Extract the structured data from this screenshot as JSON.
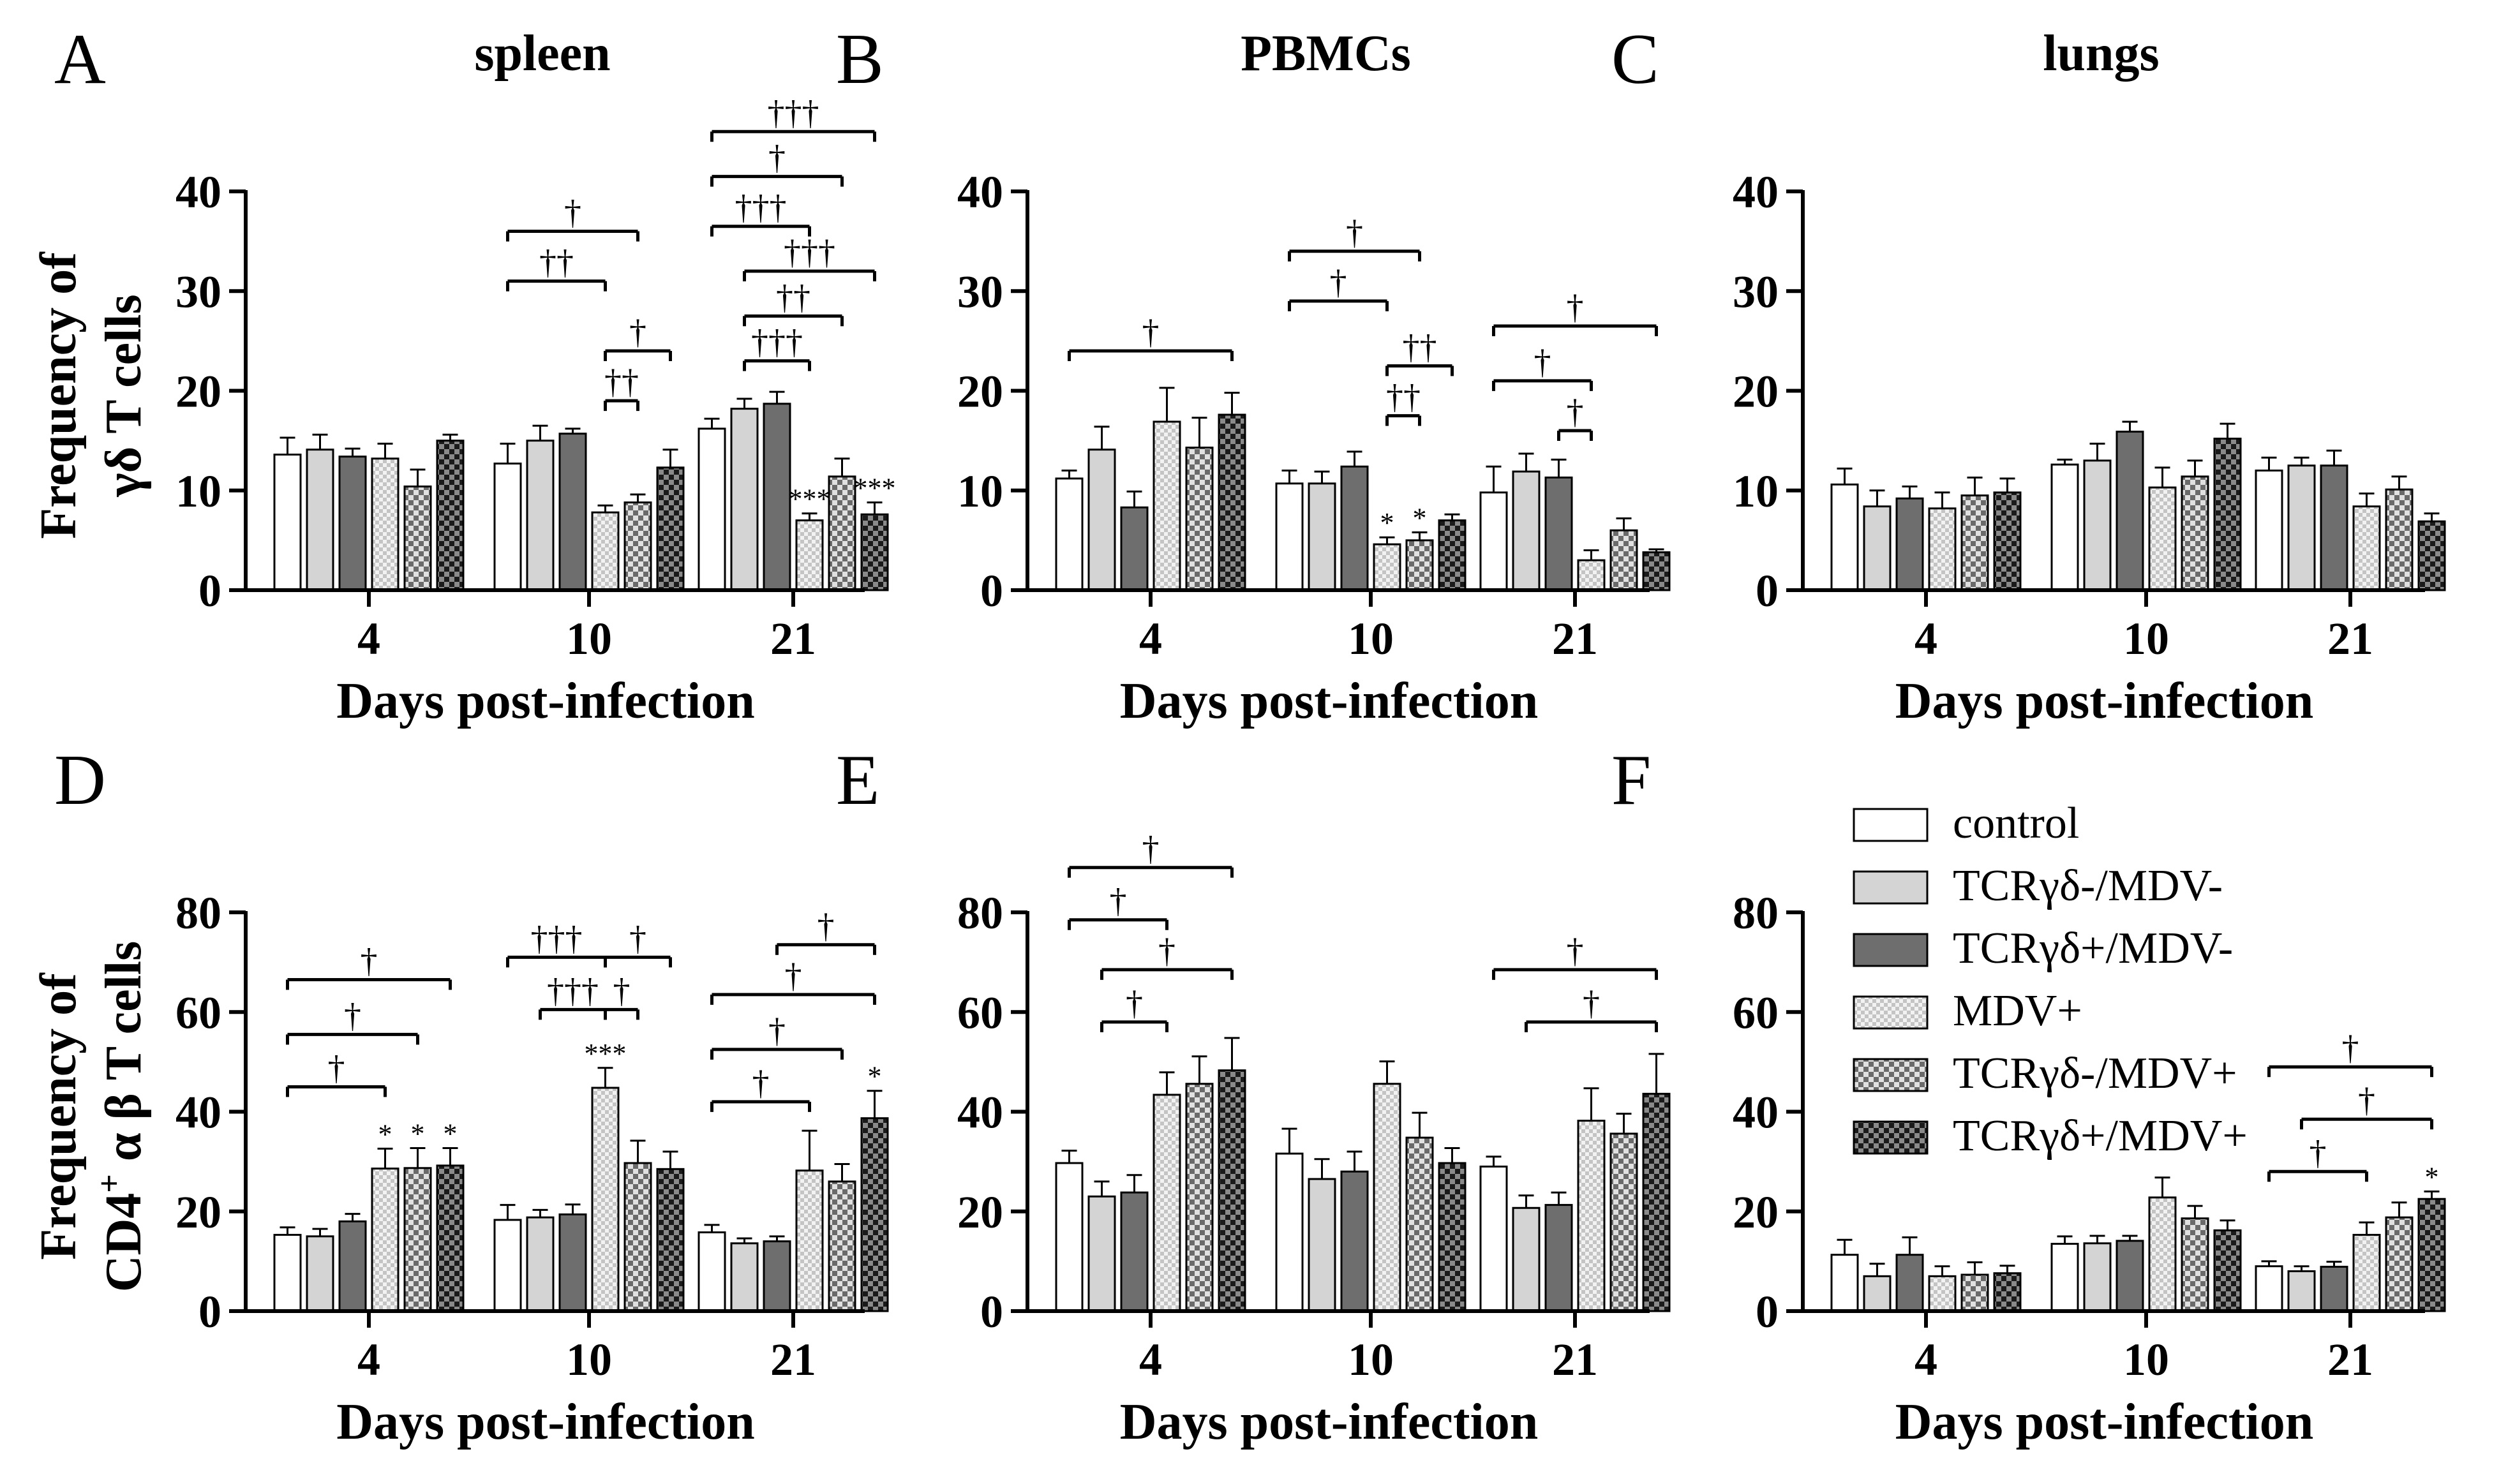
{
  "chart_data": {
    "type": "bar",
    "legend": {
      "placement": "right of panel F",
      "entries": [
        "control",
        "TCRγδ-/MDV-",
        "TCRγδ+/MDV-",
        "MDV+",
        "TCRγδ-/MDV+",
        "TCRγδ+/MDV+"
      ]
    },
    "series_fills": [
      "#ffffff",
      "#d4d4d4",
      "#6e6e6e",
      "dots-light",
      "checker-medium",
      "checker-dark"
    ],
    "ylabels": [
      "Frequency of",
      "γδ T cells",
      "CD4",
      "+",
      " α β T cells"
    ],
    "panels": [
      {
        "letter": "A",
        "title": "spleen",
        "xlabel": "Days post-infection",
        "categories": [
          "4",
          "10",
          "21"
        ],
        "ylim": [
          0,
          40
        ],
        "yticks": [
          0,
          10,
          20,
          30,
          40
        ],
        "series": [
          {
            "name": "control",
            "values": [
              13.6,
              12.7,
              16.2
            ],
            "errors": [
              1.7,
              2.0,
              1.0
            ]
          },
          {
            "name": "TCRγδ-/MDV-",
            "values": [
              14.1,
              15.0,
              18.2
            ],
            "errors": [
              1.5,
              1.5,
              1.0
            ]
          },
          {
            "name": "TCRγδ+/MDV-",
            "values": [
              13.4,
              15.7,
              18.7
            ],
            "errors": [
              0.8,
              0.5,
              1.2
            ]
          },
          {
            "name": "MDV+",
            "values": [
              13.2,
              7.8,
              7.0
            ],
            "errors": [
              1.5,
              0.7,
              0.7
            ]
          },
          {
            "name": "TCRγδ-/MDV+",
            "values": [
              10.4,
              8.8,
              11.4
            ],
            "errors": [
              1.7,
              0.8,
              1.8
            ]
          },
          {
            "name": "TCRγδ+/MDV+",
            "values": [
              15.0,
              12.3,
              7.6
            ],
            "errors": [
              0.6,
              1.8,
              1.2
            ]
          }
        ],
        "stars": [
          {
            "group": 2,
            "bar": 3,
            "text": "***"
          },
          {
            "group": 2,
            "bar": 5,
            "text": "***"
          }
        ],
        "brackets": [
          {
            "group": 1,
            "from": 0,
            "to": 4,
            "y": 36,
            "text": "†"
          },
          {
            "group": 1,
            "from": 0,
            "to": 3,
            "y": 31,
            "text": "††"
          },
          {
            "group": 1,
            "from": 3,
            "to": 5,
            "y": 24,
            "text": "†"
          },
          {
            "group": 1,
            "from": 3,
            "to": 4,
            "y": 19,
            "text": "††"
          },
          {
            "group": 2,
            "from": 0,
            "to": 5,
            "y": 46,
            "text": "†††"
          },
          {
            "group": 2,
            "from": 0,
            "to": 4,
            "y": 41.5,
            "text": "†"
          },
          {
            "group": 2,
            "from": 0,
            "to": 3,
            "y": 36.5,
            "text": "†††"
          },
          {
            "group": 2,
            "from": 1,
            "to": 5,
            "y": 32,
            "text": "†††"
          },
          {
            "group": 2,
            "from": 1,
            "to": 4,
            "y": 27.5,
            "text": "††"
          },
          {
            "group": 2,
            "from": 1,
            "to": 3,
            "y": 23,
            "text": "†††"
          }
        ]
      },
      {
        "letter": "B",
        "title": "PBMCs",
        "xlabel": "Days post-infection",
        "categories": [
          "4",
          "10",
          "21"
        ],
        "ylim": [
          0,
          40
        ],
        "yticks": [
          0,
          10,
          20,
          30,
          40
        ],
        "series": [
          {
            "name": "control",
            "values": [
              11.2,
              10.7,
              9.8
            ],
            "errors": [
              0.8,
              1.3,
              2.6
            ]
          },
          {
            "name": "TCRγδ-/MDV-",
            "values": [
              14.1,
              10.7,
              11.9
            ],
            "errors": [
              2.3,
              1.2,
              1.8
            ]
          },
          {
            "name": "TCRγδ+/MDV-",
            "values": [
              8.3,
              12.4,
              11.3
            ],
            "errors": [
              1.6,
              1.5,
              1.8
            ]
          },
          {
            "name": "MDV+",
            "values": [
              16.9,
              4.6,
              3.0
            ],
            "errors": [
              3.4,
              0.7,
              1.0
            ]
          },
          {
            "name": "TCRγδ-/MDV+",
            "values": [
              14.3,
              5.0,
              6.0
            ],
            "errors": [
              3.0,
              0.8,
              1.2
            ]
          },
          {
            "name": "TCRγδ+/MDV+",
            "values": [
              17.6,
              7.0,
              3.8
            ],
            "errors": [
              2.2,
              0.6,
              0.3
            ]
          }
        ],
        "stars": [
          {
            "group": 1,
            "bar": 3,
            "text": "*"
          },
          {
            "group": 1,
            "bar": 4,
            "text": "*"
          }
        ],
        "brackets": [
          {
            "group": 0,
            "from": 0,
            "to": 5,
            "y": 24,
            "text": "†"
          },
          {
            "group": 1,
            "from": 0,
            "to": 4,
            "y": 34,
            "text": "†"
          },
          {
            "group": 1,
            "from": 0,
            "to": 3,
            "y": 29,
            "text": "†"
          },
          {
            "group": 1,
            "from": 3,
            "to": 5,
            "y": 22.5,
            "text": "††"
          },
          {
            "group": 1,
            "from": 3,
            "to": 4,
            "y": 17.5,
            "text": "††"
          },
          {
            "group": 2,
            "from": 0,
            "to": 5,
            "y": 26.5,
            "text": "†"
          },
          {
            "group": 2,
            "from": 0,
            "to": 3,
            "y": 21,
            "text": "†"
          },
          {
            "group": 2,
            "from": 2,
            "to": 3,
            "y": 16,
            "text": "†"
          }
        ]
      },
      {
        "letter": "C",
        "title": "lungs",
        "xlabel": "Days post-infection",
        "categories": [
          "4",
          "10",
          "21"
        ],
        "ylim": [
          0,
          40
        ],
        "yticks": [
          0,
          10,
          20,
          30,
          40
        ],
        "series": [
          {
            "name": "control",
            "values": [
              10.6,
              12.6,
              12.0
            ],
            "errors": [
              1.6,
              0.5,
              1.3
            ]
          },
          {
            "name": "TCRγδ-/MDV-",
            "values": [
              8.4,
              13.0,
              12.5
            ],
            "errors": [
              1.6,
              1.7,
              0.8
            ]
          },
          {
            "name": "TCRγδ+/MDV-",
            "values": [
              9.2,
              15.9,
              12.5
            ],
            "errors": [
              1.2,
              1.0,
              1.5
            ]
          },
          {
            "name": "MDV+",
            "values": [
              8.2,
              10.3,
              8.4
            ],
            "errors": [
              1.6,
              2.0,
              1.3
            ]
          },
          {
            "name": "TCRγδ-/MDV+",
            "values": [
              9.5,
              11.4,
              10.1
            ],
            "errors": [
              1.8,
              1.6,
              1.3
            ]
          },
          {
            "name": "TCRγδ+/MDV+",
            "values": [
              9.8,
              15.2,
              6.9
            ],
            "errors": [
              1.4,
              1.5,
              0.8
            ]
          }
        ],
        "stars": [],
        "brackets": []
      },
      {
        "letter": "D",
        "title": "",
        "xlabel": "Days post-infection",
        "categories": [
          "4",
          "10",
          "21"
        ],
        "ylim": [
          0,
          80
        ],
        "yticks": [
          0,
          20,
          40,
          60,
          80
        ],
        "series": [
          {
            "name": "control",
            "values": [
              15.3,
              18.3,
              15.8
            ],
            "errors": [
              1.5,
              3.0,
              1.5
            ]
          },
          {
            "name": "TCRγδ-/MDV-",
            "values": [
              15.0,
              18.8,
              13.6
            ],
            "errors": [
              1.5,
              1.5,
              1.0
            ]
          },
          {
            "name": "TCRγδ+/MDV-",
            "values": [
              18.0,
              19.4,
              14.0
            ],
            "errors": [
              1.5,
              2.0,
              1.0
            ]
          },
          {
            "name": "MDV+",
            "values": [
              28.6,
              44.8,
              28.2
            ],
            "errors": [
              4.0,
              4.0,
              8.0
            ]
          },
          {
            "name": "TCRγδ-/MDV+",
            "values": [
              28.7,
              29.7,
              26.0
            ],
            "errors": [
              4.0,
              4.5,
              3.5
            ]
          },
          {
            "name": "TCRγδ+/MDV+",
            "values": [
              29.2,
              28.5,
              38.7
            ],
            "errors": [
              3.5,
              3.5,
              5.5
            ]
          }
        ],
        "stars": [
          {
            "group": 0,
            "bar": 3,
            "text": "*"
          },
          {
            "group": 0,
            "bar": 4,
            "text": "*"
          },
          {
            "group": 0,
            "bar": 5,
            "text": "*"
          },
          {
            "group": 1,
            "bar": 3,
            "text": "***"
          },
          {
            "group": 2,
            "bar": 5,
            "text": "*"
          }
        ],
        "brackets": [
          {
            "group": 0,
            "from": 0,
            "to": 5,
            "y": 66.5,
            "text": "†"
          },
          {
            "group": 0,
            "from": 0,
            "to": 4,
            "y": 55.5,
            "text": "†"
          },
          {
            "group": 0,
            "from": 0,
            "to": 3,
            "y": 45,
            "text": "†"
          },
          {
            "group": 1,
            "from": 0,
            "to": 3,
            "y": 71,
            "text": "†††"
          },
          {
            "group": 1,
            "from": 3,
            "to": 5,
            "y": 71,
            "text": "†"
          },
          {
            "group": 1,
            "from": 1,
            "to": 3,
            "y": 60.5,
            "text": "†††"
          },
          {
            "group": 1,
            "from": 3,
            "to": 4,
            "y": 60.5,
            "text": "†"
          },
          {
            "group": 2,
            "from": 2,
            "to": 5,
            "y": 73.5,
            "text": "†"
          },
          {
            "group": 2,
            "from": 0,
            "to": 5,
            "y": 63.5,
            "text": "†"
          },
          {
            "group": 2,
            "from": 0,
            "to": 4,
            "y": 52.5,
            "text": "†"
          },
          {
            "group": 2,
            "from": 0,
            "to": 3,
            "y": 42,
            "text": "†"
          }
        ]
      },
      {
        "letter": "E",
        "title": "",
        "xlabel": "Days post-infection",
        "categories": [
          "4",
          "10",
          "21"
        ],
        "ylim": [
          0,
          80
        ],
        "yticks": [
          0,
          20,
          40,
          60,
          80
        ],
        "series": [
          {
            "name": "control",
            "values": [
              29.7,
              31.6,
              29.0
            ],
            "errors": [
              2.5,
              5.0,
              2.0
            ]
          },
          {
            "name": "TCRγδ-/MDV-",
            "values": [
              23.0,
              26.5,
              20.7
            ],
            "errors": [
              3.0,
              4.0,
              2.5
            ]
          },
          {
            "name": "TCRγδ+/MDV-",
            "values": [
              23.8,
              28.0,
              21.3
            ],
            "errors": [
              3.5,
              4.0,
              2.5
            ]
          },
          {
            "name": "MDV+",
            "values": [
              43.4,
              45.6,
              38.2
            ],
            "errors": [
              4.5,
              4.5,
              6.5
            ]
          },
          {
            "name": "TCRγδ-/MDV+",
            "values": [
              45.6,
              34.8,
              35.6
            ],
            "errors": [
              5.5,
              5.0,
              4.0
            ]
          },
          {
            "name": "TCRγδ+/MDV+",
            "values": [
              48.3,
              29.7,
              43.6
            ],
            "errors": [
              6.5,
              3.0,
              8.0
            ]
          }
        ],
        "stars": [],
        "brackets": [
          {
            "group": 0,
            "from": 0,
            "to": 5,
            "y": 89,
            "text": "†"
          },
          {
            "group": 0,
            "from": 0,
            "to": 3,
            "y": 78.5,
            "text": "†"
          },
          {
            "group": 0,
            "from": 1,
            "to": 5,
            "y": 68.5,
            "text": "†"
          },
          {
            "group": 0,
            "from": 1,
            "to": 3,
            "y": 58,
            "text": "†"
          },
          {
            "group": 2,
            "from": 0,
            "to": 5,
            "y": 68.5,
            "text": "†"
          },
          {
            "group": 2,
            "from": 1,
            "to": 5,
            "y": 58,
            "text": "†"
          }
        ]
      },
      {
        "letter": "F",
        "title": "",
        "xlabel": "Days post-infection",
        "categories": [
          "4",
          "10",
          "21"
        ],
        "ylim": [
          0,
          80
        ],
        "yticks": [
          0,
          20,
          40,
          60,
          80
        ],
        "series": [
          {
            "name": "control",
            "values": [
              11.3,
              13.5,
              9.0
            ],
            "errors": [
              3.0,
              1.5,
              1.0
            ]
          },
          {
            "name": "TCRγδ-/MDV-",
            "values": [
              7.0,
              13.6,
              8.0
            ],
            "errors": [
              2.5,
              1.5,
              1.0
            ]
          },
          {
            "name": "TCRγδ+/MDV-",
            "values": [
              11.3,
              14.1,
              8.9
            ],
            "errors": [
              3.5,
              1.0,
              1.0
            ]
          },
          {
            "name": "MDV+",
            "values": [
              7.0,
              22.8,
              15.3
            ],
            "errors": [
              2.0,
              4.0,
              2.5
            ]
          },
          {
            "name": "TCRγδ-/MDV+",
            "values": [
              7.3,
              18.6,
              18.8
            ],
            "errors": [
              2.5,
              2.5,
              3.0
            ]
          },
          {
            "name": "TCRγδ+/MDV+",
            "values": [
              7.6,
              16.2,
              22.5
            ],
            "errors": [
              1.5,
              2.0,
              1.5
            ]
          }
        ],
        "stars": [
          {
            "group": 2,
            "bar": 5,
            "text": "*"
          }
        ],
        "brackets": [
          {
            "group": 2,
            "from": 0,
            "to": 5,
            "y": 49,
            "text": "†"
          },
          {
            "group": 2,
            "from": 1,
            "to": 5,
            "y": 38.5,
            "text": "†"
          },
          {
            "group": 2,
            "from": 0,
            "to": 3,
            "y": 28,
            "text": "†"
          }
        ]
      }
    ]
  }
}
